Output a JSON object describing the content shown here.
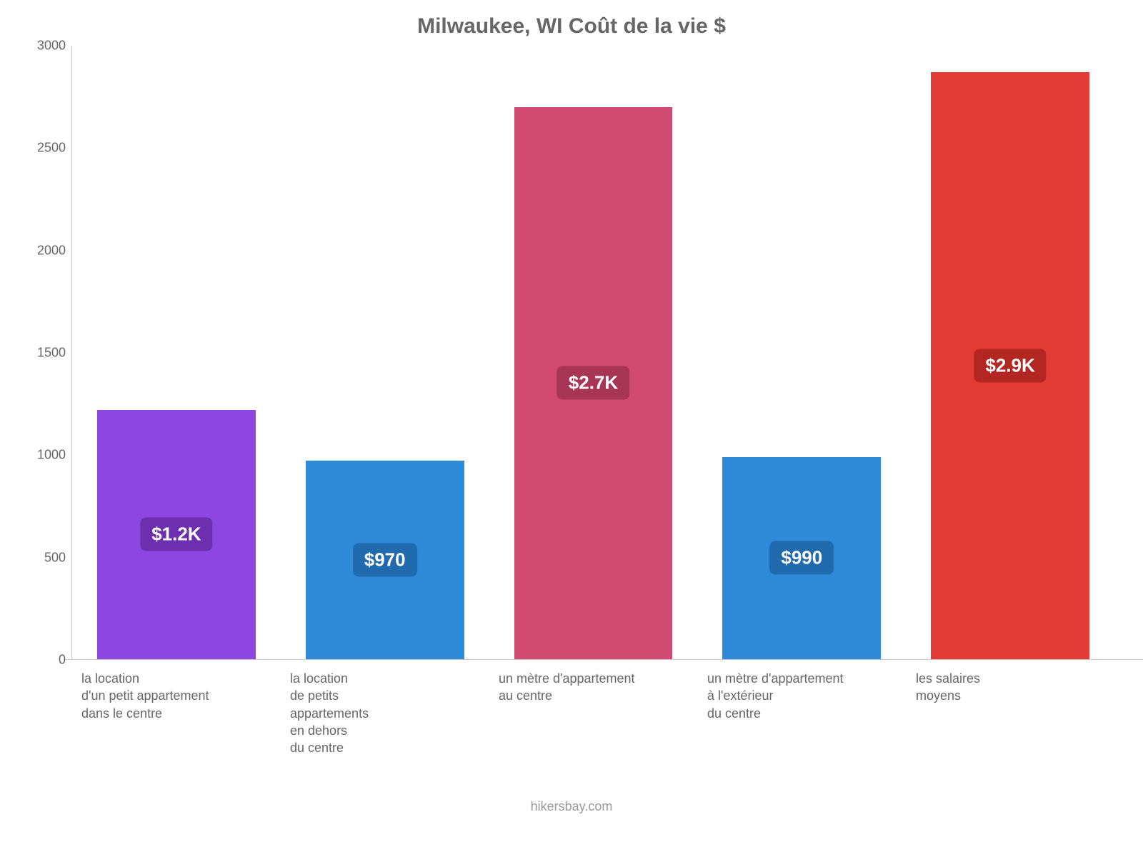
{
  "chart": {
    "type": "bar",
    "title": "Milwaukee, WI Coût de la vie $",
    "title_fontsize": 30,
    "title_color": "#666666",
    "background_color": "#ffffff",
    "axis_color": "#c8c8c8",
    "ylim": [
      0,
      3000
    ],
    "ytick_step": 500,
    "yticks": [
      {
        "value": 0,
        "label": "0"
      },
      {
        "value": 500,
        "label": "500"
      },
      {
        "value": 1000,
        "label": "1000"
      },
      {
        "value": 1500,
        "label": "1500"
      },
      {
        "value": 2000,
        "label": "2000"
      },
      {
        "value": 2500,
        "label": "2500"
      },
      {
        "value": 3000,
        "label": "3000"
      }
    ],
    "tick_fontsize": 18,
    "tick_color": "#666666",
    "bar_width": 0.76,
    "value_label_fontsize": 26,
    "value_label_text_color": "#ffffff",
    "value_label_radius": 8,
    "x_label_fontsize": 18,
    "x_label_color": "#666666",
    "bars": [
      {
        "category": "la location\nd'un petit appartement\ndans le centre",
        "value": 1220,
        "display": "$1.2K",
        "bar_color": "#8d46e0",
        "label_bg": "#6b2fb0",
        "label_pos": 0.5
      },
      {
        "category": "la location\nde petits\nappartements\nen dehors\ndu centre",
        "value": 970,
        "display": "$970",
        "bar_color": "#2f8bda",
        "label_bg": "#1f6bad",
        "label_pos": 0.5
      },
      {
        "category": "un mètre d'appartement\nau centre",
        "value": 2700,
        "display": "$2.7K",
        "bar_color": "#d14a72",
        "label_bg": "#a83556",
        "label_pos": 0.5
      },
      {
        "category": "un mètre d'appartement\nà l'extérieur\ndu centre",
        "value": 990,
        "display": "$990",
        "bar_color": "#2f8bda",
        "label_bg": "#1f6bad",
        "label_pos": 0.5
      },
      {
        "category": "les salaires\nmoyens",
        "value": 2870,
        "display": "$2.9K",
        "bar_color": "#e23b36",
        "label_bg": "#b32723",
        "label_pos": 0.5
      }
    ]
  },
  "footer": {
    "text": "hikersbay.com",
    "color": "#999999",
    "fontsize": 18
  }
}
